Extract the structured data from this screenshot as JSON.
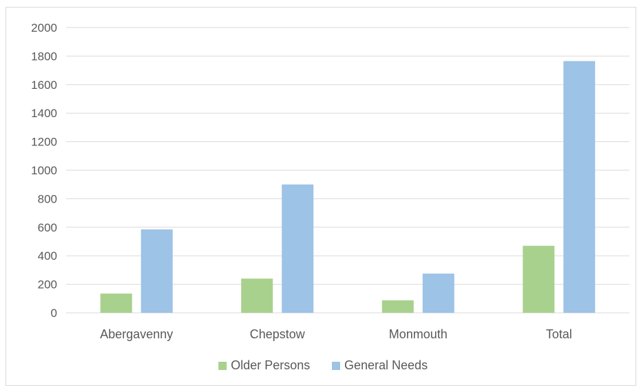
{
  "chart_data": {
    "type": "bar",
    "title": "",
    "xlabel": "",
    "ylabel": "",
    "categories": [
      "Abergavenny",
      "Chepstow",
      "Monmouth",
      "Total"
    ],
    "series": [
      {
        "name": "Older Persons",
        "color": "#a9d18e",
        "values": [
          135,
          240,
          88,
          470
        ]
      },
      {
        "name": "General Needs",
        "color": "#9dc3e6",
        "values": [
          585,
          900,
          275,
          1765
        ]
      }
    ],
    "ylim": [
      0,
      2000
    ],
    "yticks": [
      0,
      200,
      400,
      600,
      800,
      1000,
      1200,
      1400,
      1600,
      1800,
      2000
    ],
    "grid": true,
    "legend_position": "bottom"
  }
}
